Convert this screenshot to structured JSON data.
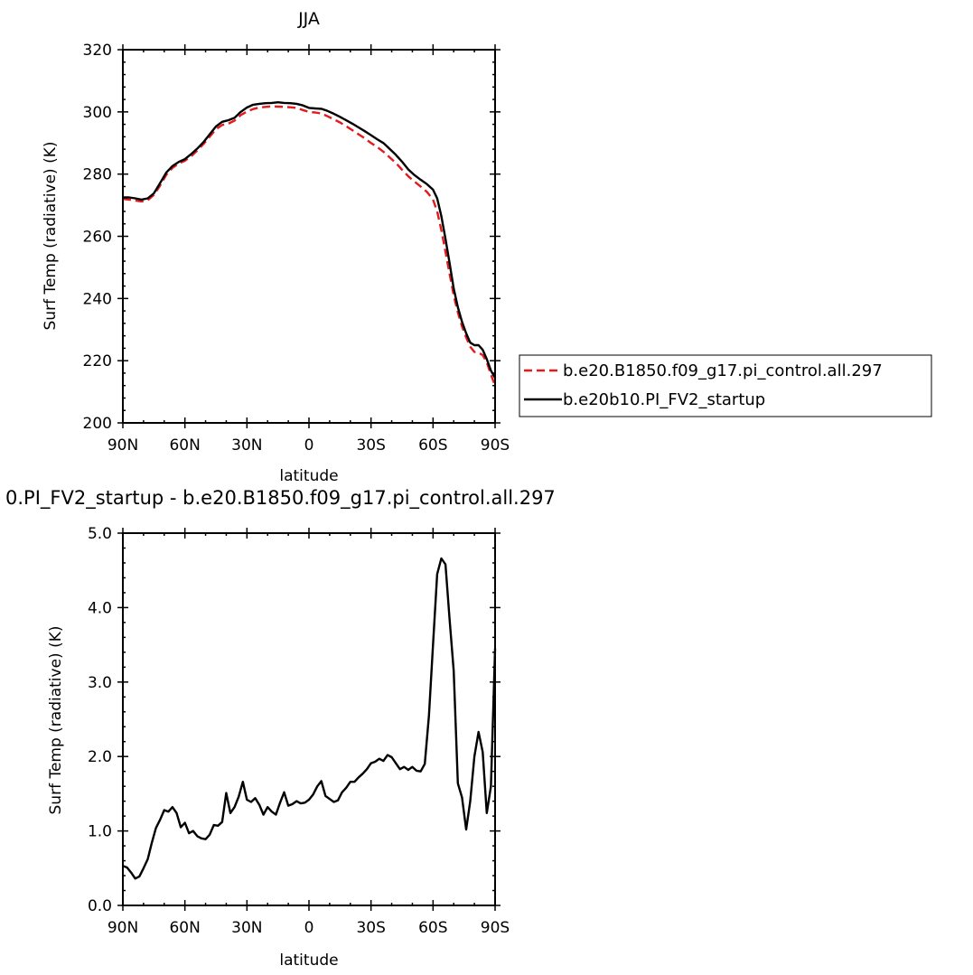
{
  "chart_data": [
    {
      "type": "line",
      "title": "JJA",
      "xlabel": "latitude",
      "ylabel": "Surf Temp (radiative) (K)",
      "x_axis": {
        "min": 90,
        "max": -90,
        "direction": "90N to 90S",
        "ticks": [
          90,
          60,
          30,
          0,
          -30,
          -60,
          -90
        ],
        "tick_labels": [
          "90N",
          "60N",
          "30N",
          "0",
          "30S",
          "60S",
          "90S"
        ]
      },
      "ylim": [
        200,
        320
      ],
      "y_ticks": [
        200,
        220,
        240,
        260,
        280,
        300,
        320
      ],
      "y_tick_labels": [
        "200",
        "220",
        "240",
        "260",
        "280",
        "300",
        "320"
      ],
      "legend_position": "right",
      "series": [
        {
          "name": "b.e20.B1850.f09_g17.pi_control.all.297",
          "color": "#e41a1c",
          "dash": "dashed",
          "points": [
            [
              90,
              272.0
            ],
            [
              87,
              271.8
            ],
            [
              84,
              271.5
            ],
            [
              81,
              271.2
            ],
            [
              78,
              271.6
            ],
            [
              75,
              273.3
            ],
            [
              72,
              276.3
            ],
            [
              69,
              279.8
            ],
            [
              66,
              282.0
            ],
            [
              63,
              283.4
            ],
            [
              60,
              284.3
            ],
            [
              57,
              285.7
            ],
            [
              54,
              287.6
            ],
            [
              51,
              289.7
            ],
            [
              48,
              292.0
            ],
            [
              45,
              294.4
            ],
            [
              42,
              295.8
            ],
            [
              39,
              296.2
            ],
            [
              36,
              297.2
            ],
            [
              33,
              299.0
            ],
            [
              30,
              300.1
            ],
            [
              27,
              300.9
            ],
            [
              24,
              301.4
            ],
            [
              21,
              301.6
            ],
            [
              18,
              301.8
            ],
            [
              15,
              301.7
            ],
            [
              12,
              301.6
            ],
            [
              9,
              301.5
            ],
            [
              6,
              301.3
            ],
            [
              3,
              300.6
            ],
            [
              0,
              300.0
            ],
            [
              -3,
              299.8
            ],
            [
              -6,
              299.5
            ],
            [
              -9,
              298.6
            ],
            [
              -12,
              297.6
            ],
            [
              -15,
              296.6
            ],
            [
              -18,
              295.4
            ],
            [
              -21,
              294.1
            ],
            [
              -24,
              292.8
            ],
            [
              -27,
              291.5
            ],
            [
              -30,
              290.0
            ],
            [
              -33,
              288.7
            ],
            [
              -36,
              287.2
            ],
            [
              -39,
              285.4
            ],
            [
              -42,
              283.6
            ],
            [
              -45,
              281.4
            ],
            [
              -48,
              279.3
            ],
            [
              -51,
              277.6
            ],
            [
              -54,
              276.0
            ],
            [
              -57,
              274.3
            ],
            [
              -60,
              271.8
            ],
            [
              -62,
              268.0
            ],
            [
              -64,
              262.0
            ],
            [
              -66,
              255.0
            ],
            [
              -68,
              248.0
            ],
            [
              -70,
              241.0
            ],
            [
              -72,
              235.5
            ],
            [
              -74,
              231.0
            ],
            [
              -76,
              227.5
            ],
            [
              -78,
              224.5
            ],
            [
              -80,
              222.8
            ],
            [
              -82,
              222.6
            ],
            [
              -84,
              221.8
            ],
            [
              -86,
              219.5
            ],
            [
              -88,
              215.5
            ],
            [
              -90,
              212.0
            ]
          ]
        },
        {
          "name": "b.e20b10.PI_FV2_startup",
          "color": "#000000",
          "dash": "solid",
          "points": [
            [
              90,
              272.5
            ],
            [
              87,
              272.5
            ],
            [
              84,
              272.2
            ],
            [
              81,
              271.8
            ],
            [
              78,
              272.2
            ],
            [
              75,
              273.8
            ],
            [
              72,
              277.1
            ],
            [
              69,
              280.5
            ],
            [
              66,
              282.6
            ],
            [
              63,
              283.9
            ],
            [
              60,
              284.8
            ],
            [
              57,
              286.4
            ],
            [
              54,
              288.2
            ],
            [
              51,
              290.3
            ],
            [
              48,
              292.8
            ],
            [
              45,
              295.3
            ],
            [
              42,
              296.8
            ],
            [
              39,
              297.3
            ],
            [
              36,
              298.1
            ],
            [
              33,
              300.0
            ],
            [
              30,
              301.4
            ],
            [
              27,
              302.3
            ],
            [
              24,
              302.6
            ],
            [
              21,
              302.8
            ],
            [
              18,
              302.9
            ],
            [
              15,
              303.1
            ],
            [
              12,
              302.9
            ],
            [
              9,
              302.8
            ],
            [
              6,
              302.6
            ],
            [
              3,
              302.1
            ],
            [
              0,
              301.3
            ],
            [
              -3,
              301.1
            ],
            [
              -6,
              301.0
            ],
            [
              -9,
              300.3
            ],
            [
              -12,
              299.4
            ],
            [
              -15,
              298.4
            ],
            [
              -18,
              297.3
            ],
            [
              -21,
              296.2
            ],
            [
              -24,
              295.0
            ],
            [
              -27,
              293.8
            ],
            [
              -30,
              292.5
            ],
            [
              -33,
              291.2
            ],
            [
              -36,
              290.0
            ],
            [
              -39,
              288.1
            ],
            [
              -42,
              286.2
            ],
            [
              -45,
              284.0
            ],
            [
              -48,
              281.5
            ],
            [
              -51,
              279.7
            ],
            [
              -54,
              278.2
            ],
            [
              -57,
              276.8
            ],
            [
              -60,
              275.0
            ],
            [
              -62,
              272.2
            ],
            [
              -64,
              266.5
            ],
            [
              -66,
              259.2
            ],
            [
              -68,
              251.5
            ],
            [
              -70,
              243.2
            ],
            [
              -72,
              237.2
            ],
            [
              -74,
              232.5
            ],
            [
              -76,
              228.8
            ],
            [
              -78,
              225.8
            ],
            [
              -80,
              225.0
            ],
            [
              -82,
              225.0
            ],
            [
              -84,
              223.5
            ],
            [
              -86,
              220.5
            ],
            [
              -88,
              216.8
            ],
            [
              -90,
              214.5
            ]
          ]
        }
      ]
    },
    {
      "type": "line",
      "title": "0.PI_FV2_startup - b.e20.B1850.f09_g17.pi_control.all.297",
      "xlabel": "latitude",
      "ylabel": "Surf Temp (radiative) (K)",
      "x_axis": {
        "min": 90,
        "max": -90,
        "direction": "90N to 90S",
        "ticks": [
          90,
          60,
          30,
          0,
          -30,
          -60,
          -90
        ],
        "tick_labels": [
          "90N",
          "60N",
          "30N",
          "0",
          "30S",
          "60S",
          "90S"
        ]
      },
      "ylim": [
        0,
        5
      ],
      "y_ticks": [
        0,
        1,
        2,
        3,
        4,
        5
      ],
      "y_tick_labels": [
        "0.0",
        "1.0",
        "2.0",
        "3.0",
        "4.0",
        "5.0"
      ],
      "series": [
        {
          "name": "",
          "color": "#000000",
          "dash": "solid",
          "points": [
            [
              90,
              0.53
            ],
            [
              88,
              0.51
            ],
            [
              86,
              0.44
            ],
            [
              84,
              0.36
            ],
            [
              82,
              0.39
            ],
            [
              80,
              0.5
            ],
            [
              78,
              0.62
            ],
            [
              76,
              0.84
            ],
            [
              74,
              1.04
            ],
            [
              72,
              1.15
            ],
            [
              70,
              1.28
            ],
            [
              68,
              1.26
            ],
            [
              66,
              1.32
            ],
            [
              64,
              1.24
            ],
            [
              62,
              1.05
            ],
            [
              60,
              1.11
            ],
            [
              58,
              0.97
            ],
            [
              56,
              1.0
            ],
            [
              54,
              0.93
            ],
            [
              52,
              0.9
            ],
            [
              50,
              0.89
            ],
            [
              48,
              0.95
            ],
            [
              46,
              1.08
            ],
            [
              44,
              1.07
            ],
            [
              42,
              1.12
            ],
            [
              40,
              1.51
            ],
            [
              38,
              1.24
            ],
            [
              36,
              1.32
            ],
            [
              34,
              1.46
            ],
            [
              32,
              1.66
            ],
            [
              30,
              1.42
            ],
            [
              28,
              1.39
            ],
            [
              26,
              1.44
            ],
            [
              24,
              1.35
            ],
            [
              22,
              1.22
            ],
            [
              20,
              1.32
            ],
            [
              18,
              1.26
            ],
            [
              16,
              1.22
            ],
            [
              14,
              1.38
            ],
            [
              12,
              1.52
            ],
            [
              10,
              1.34
            ],
            [
              8,
              1.36
            ],
            [
              6,
              1.4
            ],
            [
              4,
              1.37
            ],
            [
              2,
              1.38
            ],
            [
              0,
              1.42
            ],
            [
              -2,
              1.49
            ],
            [
              -4,
              1.6
            ],
            [
              -6,
              1.67
            ],
            [
              -8,
              1.47
            ],
            [
              -10,
              1.43
            ],
            [
              -12,
              1.39
            ],
            [
              -14,
              1.41
            ],
            [
              -16,
              1.52
            ],
            [
              -18,
              1.58
            ],
            [
              -20,
              1.66
            ],
            [
              -22,
              1.66
            ],
            [
              -24,
              1.72
            ],
            [
              -26,
              1.77
            ],
            [
              -28,
              1.83
            ],
            [
              -30,
              1.91
            ],
            [
              -32,
              1.93
            ],
            [
              -34,
              1.97
            ],
            [
              -36,
              1.94
            ],
            [
              -38,
              2.02
            ],
            [
              -40,
              1.99
            ],
            [
              -42,
              1.91
            ],
            [
              -44,
              1.83
            ],
            [
              -46,
              1.86
            ],
            [
              -48,
              1.82
            ],
            [
              -50,
              1.86
            ],
            [
              -52,
              1.81
            ],
            [
              -54,
              1.8
            ],
            [
              -56,
              1.9
            ],
            [
              -58,
              2.55
            ],
            [
              -60,
              3.5
            ],
            [
              -62,
              4.45
            ],
            [
              -64,
              4.66
            ],
            [
              -66,
              4.58
            ],
            [
              -68,
              3.85
            ],
            [
              -70,
              3.15
            ],
            [
              -72,
              1.64
            ],
            [
              -74,
              1.45
            ],
            [
              -76,
              1.02
            ],
            [
              -78,
              1.4
            ],
            [
              -80,
              2.0
            ],
            [
              -82,
              2.33
            ],
            [
              -84,
              2.06
            ],
            [
              -86,
              1.24
            ],
            [
              -88,
              1.6
            ],
            [
              -90,
              3.45
            ]
          ]
        }
      ]
    }
  ]
}
